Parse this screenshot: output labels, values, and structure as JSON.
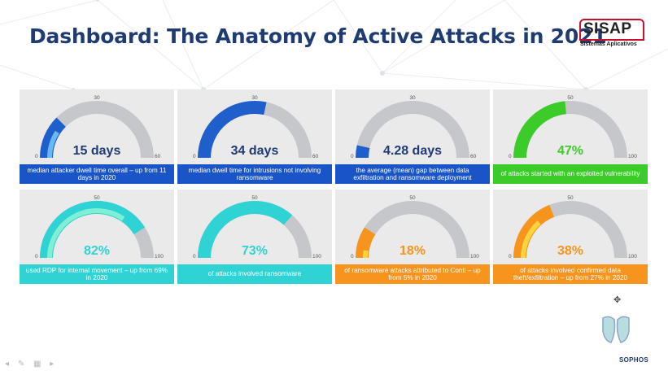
{
  "title": "Dashboard: The Anatomy of Active Attacks in 2021",
  "logo": {
    "brand": "SISAP",
    "subtitle": "Sistemas Aplicativos"
  },
  "footer_brand": "SOPHOS",
  "cards": [
    {
      "value_text": "15 days",
      "label": "median attacker dwell time overall – up from 11 days in 2020",
      "min_label": "0",
      "mid_label": "30",
      "max_label": "60",
      "value": 15,
      "max": 60,
      "prior": 11,
      "color": "#1f5fcc",
      "prior_color": "#6ab8f0",
      "label_bg": "#1a55c8",
      "value_color": "#1f3b73"
    },
    {
      "value_text": "34 days",
      "label": "median dwell time for intrusions not involving ransomware",
      "min_label": "0",
      "mid_label": "30",
      "max_label": "60",
      "value": 34,
      "max": 60,
      "prior": null,
      "color": "#1f5fcc",
      "prior_color": null,
      "label_bg": "#1a55c8",
      "value_color": "#1f3b73"
    },
    {
      "value_text": "4.28 days",
      "label": "the average (mean) gap between data exfiltration and ransomware deployment",
      "min_label": "0",
      "mid_label": "30",
      "max_label": "60",
      "value": 4.28,
      "max": 60,
      "prior": null,
      "color": "#1f5fcc",
      "prior_color": null,
      "label_bg": "#1a55c8",
      "value_color": "#1f3b73"
    },
    {
      "value_text": "47%",
      "label": "of attacks started with an exploited vulnerability",
      "min_label": "0",
      "mid_label": "50",
      "max_label": "100",
      "value": 47,
      "max": 100,
      "prior": null,
      "color": "#3ccc2a",
      "prior_color": null,
      "label_bg": "#3ccc2a",
      "value_color": "#3ccc2a"
    },
    {
      "value_text": "82%",
      "label": "used RDP for internal movement – up from 69% in 2020",
      "min_label": "0",
      "mid_label": "50",
      "max_label": "100",
      "value": 82,
      "max": 100,
      "prior": 69,
      "color": "#2fd3d3",
      "prior_color": "#7ff0d6",
      "label_bg": "#2fd3d3",
      "value_color": "#2fd3d3"
    },
    {
      "value_text": "73%",
      "label": "of attacks involved ransomware",
      "min_label": "0",
      "mid_label": "50",
      "max_label": "100",
      "value": 73,
      "max": 100,
      "prior": null,
      "color": "#2fd3d3",
      "prior_color": null,
      "label_bg": "#2fd3d3",
      "value_color": "#2fd3d3"
    },
    {
      "value_text": "18%",
      "label": "of ransomware attacks attributed to Conti – up from 5% in 2020",
      "min_label": "0",
      "mid_label": "50",
      "max_label": "100",
      "value": 18,
      "max": 100,
      "prior": 5,
      "color": "#f7941d",
      "prior_color": "#f9d43a",
      "label_bg": "#f7941d",
      "value_color": "#f7941d"
    },
    {
      "value_text": "38%",
      "label": "of attacks involved confirmed data theft/exfiltration – up from 27% in 2020",
      "min_label": "0",
      "mid_label": "50",
      "max_label": "100",
      "value": 38,
      "max": 100,
      "prior": 27,
      "color": "#f7941d",
      "prior_color": "#f9d43a",
      "label_bg": "#f7941d",
      "value_color": "#f7941d"
    }
  ]
}
